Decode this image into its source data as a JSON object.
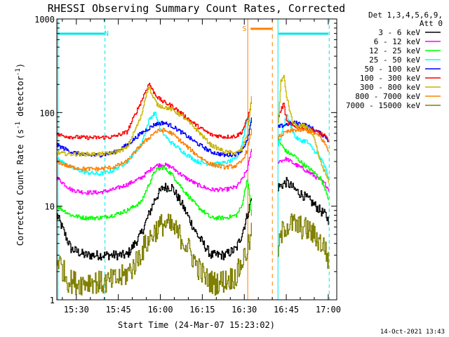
{
  "chart_data": {
    "type": "line",
    "title": "RHESSI Observing Summary Count Rates, Corrected",
    "xlabel": "Start Time (24-Mar-07 15:23:02)",
    "ylabel": "Corrected Count Rate (s^-1 detector^-1)",
    "ylabel_main": "Corrected Count Rate (s",
    "ylabel_sup1": "-1",
    "ylabel_mid": " detector",
    "ylabel_sup2": "-1",
    "ylabel_end": ")",
    "yscale": "log",
    "ylim": [
      1,
      1000
    ],
    "xlim_minutes": [
      0,
      100
    ],
    "x_ticks": [
      {
        "label": "15:30",
        "min": 6.97
      },
      {
        "label": "15:45",
        "min": 21.97
      },
      {
        "label": "16:00",
        "min": 36.97
      },
      {
        "label": "16:15",
        "min": 51.97
      },
      {
        "label": "16:30",
        "min": 66.97
      },
      {
        "label": "16:45",
        "min": 81.97
      },
      {
        "label": "17:00",
        "min": 96.97
      }
    ],
    "y_ticks": [
      {
        "label": "1",
        "v": 1
      },
      {
        "label": "10",
        "v": 10
      },
      {
        "label": "100",
        "v": 100
      },
      {
        "label": "1000",
        "v": 1000
      }
    ],
    "legend": {
      "header1": "Det 1,3,4,5,6,9,",
      "header2": "Att 0",
      "placement": "right"
    },
    "series": [
      {
        "name": "3 - 6 keV",
        "color": "#000000",
        "x": [
          0,
          5,
          10,
          15,
          20,
          25,
          30,
          35,
          38,
          41,
          45,
          50,
          55,
          60,
          64,
          66,
          68,
          69.5,
          79,
          82,
          85,
          88,
          91,
          94,
          96,
          97
        ],
        "y": [
          8,
          3.5,
          3,
          3,
          3,
          3,
          5,
          12,
          16,
          16,
          10,
          5,
          3,
          3,
          3.5,
          5,
          8,
          12,
          16,
          18,
          15,
          13,
          11,
          9,
          8,
          7
        ]
      },
      {
        "name": "6 - 12 keV",
        "color": "#ff00ff",
        "x": [
          0,
          5,
          10,
          15,
          20,
          25,
          30,
          35,
          38,
          41,
          45,
          50,
          55,
          60,
          64,
          66,
          68,
          69.5,
          79,
          82,
          85,
          88,
          91,
          94,
          96,
          97
        ],
        "y": [
          20,
          15,
          14,
          14,
          15,
          17,
          20,
          27,
          28,
          26,
          21,
          17,
          15,
          15,
          16,
          19,
          25,
          40,
          30,
          32,
          28,
          25,
          22,
          19,
          17,
          15
        ]
      },
      {
        "name": "12 - 25 keV",
        "color": "#00ff00",
        "x": [
          0,
          5,
          10,
          15,
          20,
          25,
          30,
          35,
          38,
          41,
          45,
          50,
          55,
          60,
          64,
          66,
          68,
          69.5,
          79,
          82,
          85,
          88,
          91,
          94,
          96,
          97
        ],
        "y": [
          10,
          8,
          7.5,
          7.5,
          8,
          9,
          11,
          24,
          26,
          22,
          15,
          10,
          7.5,
          7.5,
          8,
          10,
          20,
          8,
          50,
          38,
          34,
          28,
          24,
          20,
          15,
          12
        ]
      },
      {
        "name": "25 - 50 keV",
        "color": "#00ffff",
        "x": [
          0,
          5,
          10,
          15,
          20,
          25,
          30,
          33,
          35,
          37,
          40,
          45,
          50,
          55,
          60,
          64,
          66,
          68,
          69.5,
          79,
          80,
          82,
          85,
          87,
          89,
          91,
          94,
          96,
          97
        ],
        "y": [
          32,
          26,
          23,
          22,
          24,
          30,
          45,
          85,
          100,
          65,
          50,
          38,
          30,
          28,
          29,
          32,
          45,
          90,
          75,
          45,
          55,
          95,
          55,
          50,
          50,
          42,
          33,
          25,
          20
        ]
      },
      {
        "name": "50 - 100 keV",
        "color": "#0000ff",
        "x": [
          0,
          5,
          10,
          15,
          20,
          25,
          30,
          35,
          38,
          41,
          45,
          50,
          55,
          60,
          64,
          66,
          68,
          69.5,
          79,
          82,
          85,
          88,
          91,
          94,
          96,
          97
        ],
        "y": [
          45,
          38,
          35,
          35,
          37,
          45,
          60,
          75,
          78,
          72,
          60,
          47,
          38,
          35,
          36,
          40,
          50,
          85,
          70,
          75,
          78,
          75,
          68,
          60,
          55,
          50
        ]
      },
      {
        "name": "100 - 300 keV",
        "color": "#ff0000",
        "x": [
          0,
          5,
          10,
          15,
          20,
          25,
          30,
          32,
          33,
          34,
          36,
          38,
          41,
          45,
          50,
          55,
          60,
          64,
          66,
          68,
          69.5,
          79,
          81,
          82,
          84,
          86,
          88,
          91,
          94,
          96,
          97
        ],
        "y": [
          58,
          55,
          54,
          54,
          55,
          62,
          130,
          180,
          205,
          175,
          145,
          130,
          118,
          95,
          72,
          58,
          55,
          56,
          62,
          85,
          130,
          90,
          125,
          80,
          72,
          70,
          68,
          65,
          60,
          55,
          50
        ]
      },
      {
        "name": "300 - 800 keV",
        "color": "#c8b400",
        "x": [
          0,
          5,
          10,
          15,
          20,
          25,
          30,
          32,
          33,
          34,
          36,
          38,
          41,
          45,
          50,
          55,
          60,
          64,
          66,
          68,
          69.5,
          79,
          80,
          81,
          82,
          84,
          86,
          88,
          90,
          92,
          94,
          96,
          97
        ],
        "y": [
          37,
          36,
          36,
          36,
          37,
          42,
          90,
          165,
          190,
          150,
          120,
          115,
          108,
          90,
          65,
          45,
          38,
          37,
          40,
          60,
          150,
          75,
          220,
          240,
          150,
          80,
          70,
          72,
          70,
          50,
          30,
          22,
          18
        ]
      },
      {
        "name": "800 - 7000 keV",
        "color": "#ff8000",
        "x": [
          0,
          5,
          10,
          15,
          20,
          25,
          30,
          35,
          38,
          41,
          45,
          50,
          55,
          60,
          64,
          66,
          68,
          69.5,
          79,
          82,
          85,
          88,
          91,
          94,
          96,
          97
        ],
        "y": [
          30,
          26,
          25,
          25,
          26,
          30,
          45,
          62,
          65,
          60,
          47,
          35,
          28,
          26,
          27,
          30,
          40,
          65,
          55,
          62,
          65,
          65,
          62,
          55,
          45,
          38
        ]
      },
      {
        "name": "7000 - 15000 keV",
        "color": "#808000",
        "x": [
          0,
          4,
          8,
          12,
          16,
          20,
          24,
          27,
          30,
          33,
          35,
          38,
          41,
          44,
          47,
          50,
          53,
          56,
          60,
          64,
          66,
          68,
          69.5,
          79,
          81,
          84,
          87,
          90,
          93,
          96,
          97
        ],
        "y": [
          2.8,
          1.6,
          1.5,
          1.6,
          1.5,
          1.6,
          1.8,
          2.2,
          3.2,
          4.5,
          5.5,
          6.5,
          6,
          4.8,
          3.5,
          2.3,
          1.7,
          1.5,
          1.6,
          1.8,
          2.5,
          3.5,
          5,
          3.5,
          6,
          6.5,
          6,
          5.5,
          4.5,
          3.5,
          2.5
        ]
      }
    ],
    "annotations": {
      "N": {
        "text": "N",
        "color": "#00e5e5",
        "x_min": 16.5
      },
      "S": {
        "text": "S",
        "color": "#ff8000",
        "x_min": 67
      }
    }
  },
  "footer_timestamp": "14-Oct-2021 13:43"
}
